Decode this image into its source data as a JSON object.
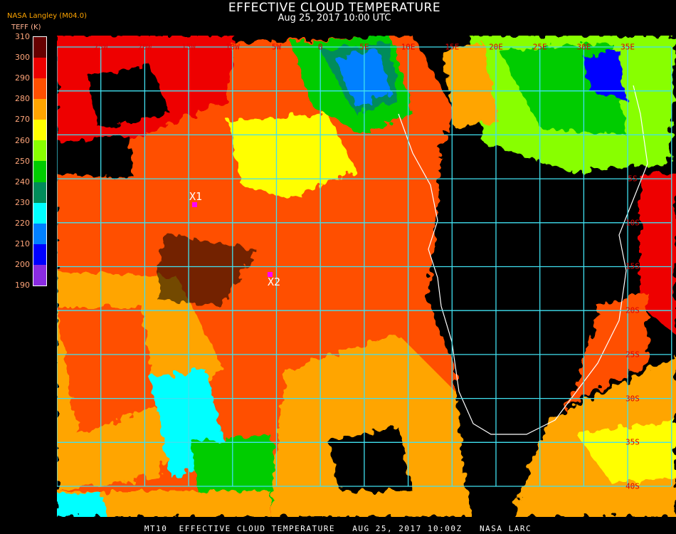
{
  "header": {
    "title": "EFFECTIVE CLOUD TEMPERATURE",
    "datetime": "Aug 25, 2017 10:00 UTC",
    "source": "NASA Langley (M04.0)"
  },
  "legend": {
    "unit": "TEFF (K)",
    "ticks": [
      "310",
      "300",
      "290",
      "280",
      "270",
      "260",
      "250",
      "240",
      "230",
      "220",
      "210",
      "200",
      "190"
    ],
    "colors": [
      "#660000",
      "#ee0000",
      "#ff5000",
      "#ffa500",
      "#ffff00",
      "#88ff00",
      "#00cc00",
      "#008c5a",
      "#00ffff",
      "#0080ff",
      "#0000ff",
      "#8a2be2"
    ]
  },
  "map": {
    "lon_labels": [
      "25W",
      "20W",
      "15W",
      "10W",
      "5W",
      "0",
      "5E",
      "10E",
      "15E",
      "20E",
      "25E",
      "30E",
      "35E"
    ],
    "lat_labels": [
      "5S",
      "10S",
      "15S",
      "20S",
      "25S",
      "30S",
      "35S",
      "40S"
    ],
    "grid_color": "#40e0f0",
    "coast_color": "#ffffff",
    "label_color": "#e00000",
    "markers": [
      {
        "label": "X1"
      },
      {
        "label": "X2"
      }
    ]
  },
  "footer": "MT10  EFFECTIVE CLOUD TEMPERATURE   AUG 25, 2017 10:00Z   NASA LARC"
}
